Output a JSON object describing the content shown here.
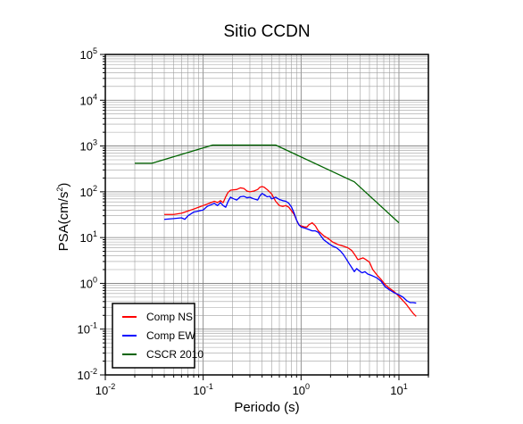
{
  "chart_data": {
    "type": "line",
    "title": "Sitio CCDN",
    "xlabel": "Periodo (s)",
    "ylabel_main": "PSA(cm/s",
    "ylabel_exp": "2",
    "ylabel_close": ")",
    "x_scale": "log",
    "y_scale": "log",
    "xlim": [
      0.01,
      20
    ],
    "ylim": [
      0.01,
      100000
    ],
    "grid": true,
    "legend_position": "bottom-left",
    "x_ticks": [
      {
        "base": "10",
        "exp": "-2",
        "value": 0.01
      },
      {
        "base": "10",
        "exp": "-1",
        "value": 0.1
      },
      {
        "base": "10",
        "exp": "0",
        "value": 1
      },
      {
        "base": "10",
        "exp": "1",
        "value": 10
      }
    ],
    "y_ticks": [
      {
        "base": "10",
        "exp": "-2",
        "value": 0.01
      },
      {
        "base": "10",
        "exp": "-1",
        "value": 0.1
      },
      {
        "base": "10",
        "exp": "0",
        "value": 1
      },
      {
        "base": "10",
        "exp": "1",
        "value": 10
      },
      {
        "base": "10",
        "exp": "2",
        "value": 100
      },
      {
        "base": "10",
        "exp": "3",
        "value": 1000
      },
      {
        "base": "10",
        "exp": "4",
        "value": 10000
      },
      {
        "base": "10",
        "exp": "5",
        "value": 100000
      }
    ],
    "series": [
      {
        "name": "Comp NS",
        "color": "#ff0000",
        "points": [
          [
            0.04,
            32
          ],
          [
            0.05,
            32
          ],
          [
            0.06,
            34
          ],
          [
            0.07,
            38
          ],
          [
            0.08,
            42
          ],
          [
            0.09,
            46
          ],
          [
            0.1,
            50
          ],
          [
            0.11,
            54
          ],
          [
            0.12,
            58
          ],
          [
            0.13,
            62
          ],
          [
            0.14,
            58
          ],
          [
            0.15,
            64
          ],
          [
            0.16,
            58
          ],
          [
            0.17,
            78
          ],
          [
            0.18,
            98
          ],
          [
            0.19,
            108
          ],
          [
            0.2,
            110
          ],
          [
            0.22,
            112
          ],
          [
            0.24,
            122
          ],
          [
            0.26,
            118
          ],
          [
            0.28,
            104
          ],
          [
            0.3,
            100
          ],
          [
            0.33,
            104
          ],
          [
            0.36,
            112
          ],
          [
            0.38,
            126
          ],
          [
            0.4,
            130
          ],
          [
            0.42,
            126
          ],
          [
            0.45,
            112
          ],
          [
            0.5,
            90
          ],
          [
            0.55,
            62
          ],
          [
            0.6,
            50
          ],
          [
            0.65,
            48
          ],
          [
            0.7,
            50
          ],
          [
            0.75,
            46
          ],
          [
            0.8,
            38
          ],
          [
            0.85,
            32
          ],
          [
            0.9,
            24
          ],
          [
            0.95,
            19
          ],
          [
            1.0,
            18
          ],
          [
            1.1,
            17
          ],
          [
            1.15,
            17
          ],
          [
            1.2,
            19
          ],
          [
            1.3,
            21
          ],
          [
            1.4,
            18
          ],
          [
            1.5,
            14
          ],
          [
            1.7,
            11
          ],
          [
            1.9,
            9.5
          ],
          [
            2.1,
            8
          ],
          [
            2.4,
            7
          ],
          [
            2.7,
            6.5
          ],
          [
            3.0,
            6.0
          ],
          [
            3.3,
            5.2
          ],
          [
            3.6,
            4.0
          ],
          [
            3.8,
            3.3
          ],
          [
            4.0,
            3.4
          ],
          [
            4.3,
            3.6
          ],
          [
            4.6,
            3.3
          ],
          [
            5.0,
            2.9
          ],
          [
            5.4,
            2.0
          ],
          [
            6.0,
            1.5
          ],
          [
            6.6,
            1.2
          ],
          [
            7.2,
            0.95
          ],
          [
            8.0,
            0.78
          ],
          [
            9.0,
            0.65
          ],
          [
            10.0,
            0.52
          ],
          [
            11.0,
            0.42
          ],
          [
            12.0,
            0.34
          ],
          [
            13.0,
            0.27
          ],
          [
            14.0,
            0.22
          ],
          [
            15.0,
            0.19
          ]
        ]
      },
      {
        "name": "Comp EW",
        "color": "#0000ff",
        "points": [
          [
            0.04,
            25
          ],
          [
            0.05,
            26
          ],
          [
            0.06,
            27
          ],
          [
            0.065,
            25
          ],
          [
            0.07,
            30
          ],
          [
            0.08,
            36
          ],
          [
            0.09,
            38
          ],
          [
            0.1,
            40
          ],
          [
            0.11,
            48
          ],
          [
            0.12,
            52
          ],
          [
            0.13,
            56
          ],
          [
            0.14,
            50
          ],
          [
            0.15,
            58
          ],
          [
            0.16,
            50
          ],
          [
            0.17,
            46
          ],
          [
            0.18,
            62
          ],
          [
            0.19,
            76
          ],
          [
            0.2,
            72
          ],
          [
            0.22,
            66
          ],
          [
            0.24,
            78
          ],
          [
            0.26,
            80
          ],
          [
            0.28,
            74
          ],
          [
            0.3,
            76
          ],
          [
            0.33,
            70
          ],
          [
            0.36,
            66
          ],
          [
            0.38,
            82
          ],
          [
            0.4,
            92
          ],
          [
            0.42,
            86
          ],
          [
            0.45,
            78
          ],
          [
            0.48,
            80
          ],
          [
            0.5,
            70
          ],
          [
            0.55,
            76
          ],
          [
            0.6,
            68
          ],
          [
            0.65,
            64
          ],
          [
            0.7,
            62
          ],
          [
            0.75,
            56
          ],
          [
            0.8,
            46
          ],
          [
            0.85,
            34
          ],
          [
            0.9,
            24
          ],
          [
            0.95,
            19
          ],
          [
            1.0,
            17
          ],
          [
            1.1,
            16
          ],
          [
            1.2,
            15
          ],
          [
            1.3,
            14
          ],
          [
            1.4,
            14
          ],
          [
            1.5,
            13
          ],
          [
            1.7,
            9
          ],
          [
            1.9,
            7.5
          ],
          [
            2.1,
            6.5
          ],
          [
            2.3,
            6.0
          ],
          [
            2.5,
            5.2
          ],
          [
            2.7,
            4.3
          ],
          [
            2.9,
            3.4
          ],
          [
            3.1,
            2.7
          ],
          [
            3.3,
            2.2
          ],
          [
            3.5,
            1.8
          ],
          [
            3.7,
            2.1
          ],
          [
            3.9,
            1.9
          ],
          [
            4.2,
            1.7
          ],
          [
            4.5,
            1.8
          ],
          [
            4.8,
            1.6
          ],
          [
            5.2,
            1.5
          ],
          [
            5.6,
            1.4
          ],
          [
            6.0,
            1.3
          ],
          [
            6.6,
            1.1
          ],
          [
            7.2,
            0.85
          ],
          [
            8.0,
            0.72
          ],
          [
            9.0,
            0.62
          ],
          [
            10.0,
            0.56
          ],
          [
            11.0,
            0.5
          ],
          [
            12.0,
            0.42
          ],
          [
            13.0,
            0.38
          ],
          [
            14.0,
            0.38
          ],
          [
            15.0,
            0.37
          ]
        ]
      },
      {
        "name": "CSCR 2010",
        "color": "#006400",
        "points": [
          [
            0.02,
            420
          ],
          [
            0.03,
            420
          ],
          [
            0.125,
            1050
          ],
          [
            0.55,
            1050
          ],
          [
            3.5,
            165
          ],
          [
            10.0,
            21
          ]
        ]
      }
    ]
  }
}
